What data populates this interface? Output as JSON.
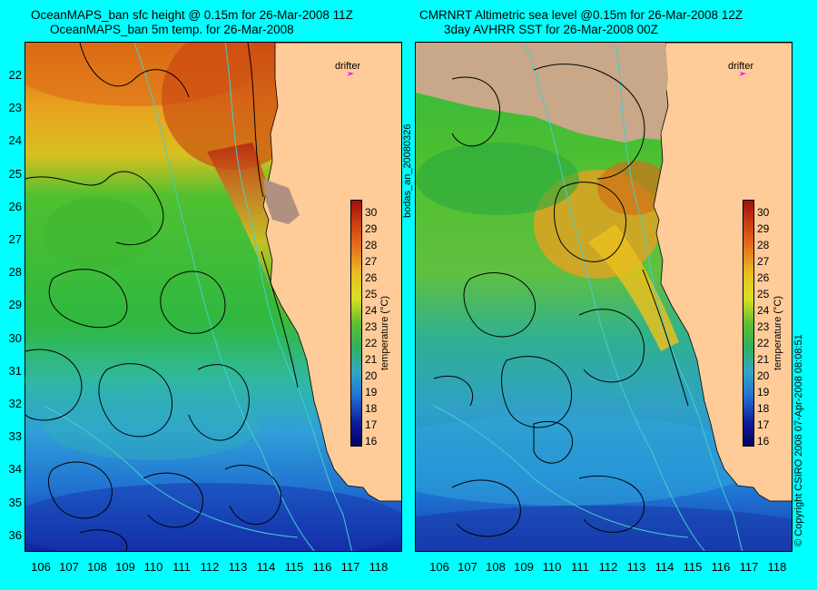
{
  "left_panel": {
    "title_line1": "OceanMAPS_ban sfc height @ 0.15m for 26-Mar-2008 11Z",
    "title_line2": "OceanMAPS_ban 5m temp. for 26-Mar-2008"
  },
  "right_panel": {
    "title_line1": "CMRNRT Altimetric sea level  @0.15m  for 26-Mar-2008 12Z",
    "title_line2": "3day AVHRR SST for 26-Mar-2008 00Z"
  },
  "latitude_labels": [
    "22",
    "23",
    "24",
    "25",
    "26",
    "27",
    "28",
    "29",
    "30",
    "31",
    "32",
    "33",
    "34",
    "35",
    "36"
  ],
  "longitude_labels": [
    "106",
    "107",
    "108",
    "109",
    "110",
    "111",
    "112",
    "113",
    "114",
    "115",
    "116",
    "117",
    "118"
  ],
  "colorbar": {
    "ticks": [
      "30",
      "29",
      "28",
      "27",
      "26",
      "25",
      "24",
      "23",
      "22",
      "21",
      "20",
      "19",
      "18",
      "17",
      "16"
    ],
    "label": "temperature (°C)",
    "min": 16,
    "max": 30
  },
  "drifter_label": "drifter",
  "center_vertical_text": "bodas_an_20080326",
  "right_vertical_text": "© Copyright CSIRO 2008   07-Apr-2008 08:08:51",
  "colors": {
    "background": "#00ffff",
    "land_ocean_model": "#ffcc99",
    "land_satellite": "#c8a888",
    "contour": "#000000",
    "isobath": "#40d0d0",
    "drifter": "#ff00ff"
  }
}
